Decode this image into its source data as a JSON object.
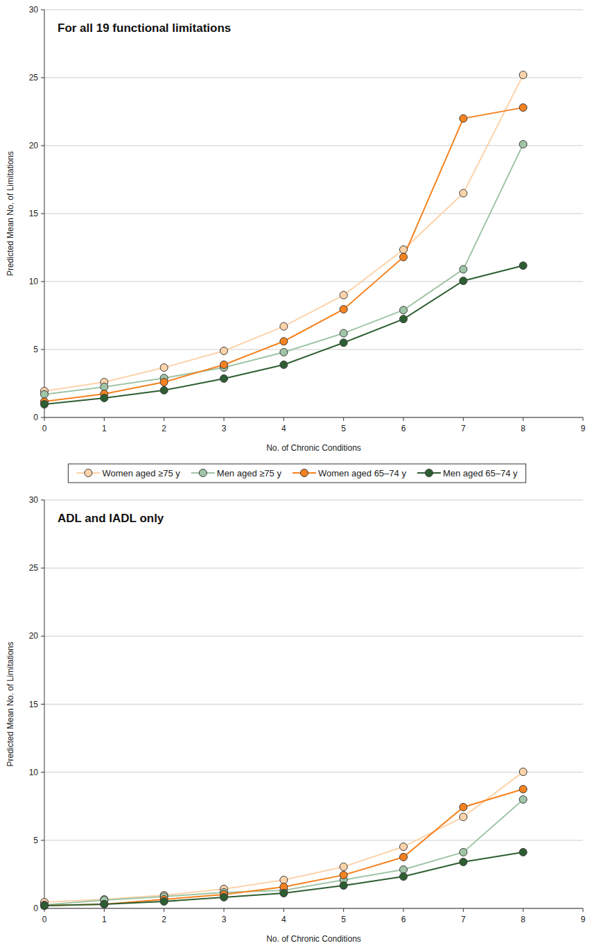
{
  "chart_data": [
    {
      "type": "line",
      "title": "For all 19 functional limitations",
      "x_label": "No. of Chronic Conditions",
      "y_label": "Predicted Mean No. of Limitations",
      "x": [
        0,
        1,
        2,
        3,
        4,
        5,
        6,
        7,
        8
      ],
      "xlim": [
        0,
        9
      ],
      "xticks": [
        0,
        1,
        2,
        3,
        4,
        5,
        6,
        7,
        8,
        9
      ],
      "ylim": [
        0,
        30
      ],
      "yticks": [
        0,
        5,
        10,
        15,
        20,
        25,
        30
      ],
      "grid": true,
      "legend": "bottom",
      "marker": "circle",
      "series": [
        {
          "name": "Women aged ≥75 y",
          "color": "#fdd3aa",
          "values": [
            1.94,
            2.6,
            3.67,
            4.9,
            6.7,
            9.0,
            12.35,
            16.5,
            25.2
          ]
        },
        {
          "name": "Men aged ≥75 y",
          "color": "#9fc5a6",
          "values": [
            1.7,
            2.25,
            2.9,
            3.67,
            4.8,
            6.2,
            7.9,
            10.9,
            20.1
          ]
        },
        {
          "name": "Women aged 65–74 y",
          "color": "#f58220",
          "values": [
            1.17,
            1.73,
            2.6,
            3.88,
            5.6,
            7.96,
            11.8,
            22.0,
            22.8
          ]
        },
        {
          "name": "Men aged 65–74 y",
          "color": "#2d5e32",
          "values": [
            0.97,
            1.43,
            2.0,
            2.86,
            3.88,
            5.5,
            7.24,
            10.05,
            11.17
          ]
        }
      ]
    },
    {
      "type": "line",
      "title": "ADL and IADL only",
      "x_label": "No. of Chronic Conditions",
      "y_label": "Predicted Mean No. of Limitations",
      "x": [
        0,
        1,
        2,
        3,
        4,
        5,
        6,
        7,
        8
      ],
      "xlim": [
        0,
        9
      ],
      "xticks": [
        0,
        1,
        2,
        3,
        4,
        5,
        6,
        7,
        8,
        9
      ],
      "ylim": [
        0,
        30
      ],
      "yticks": [
        0,
        5,
        10,
        15,
        20,
        25,
        30
      ],
      "grid": true,
      "marker": "circle",
      "series": [
        {
          "color": "#fdd3aa",
          "values": [
            0.46,
            0.66,
            0.97,
            1.43,
            2.09,
            3.06,
            4.53,
            6.72,
            10.03
          ]
        },
        {
          "color": "#9fc5a6",
          "values": [
            0.25,
            0.61,
            0.87,
            1.17,
            1.32,
            2.09,
            2.85,
            4.13,
            8.0
          ]
        },
        {
          "color": "#f58220",
          "values": [
            0.2,
            0.31,
            0.66,
            1.02,
            1.58,
            2.45,
            3.77,
            7.44,
            8.76
          ]
        },
        {
          "color": "#2d5e32",
          "values": [
            0.2,
            0.31,
            0.51,
            0.82,
            1.12,
            1.68,
            2.34,
            3.41,
            4.13
          ]
        }
      ]
    }
  ]
}
